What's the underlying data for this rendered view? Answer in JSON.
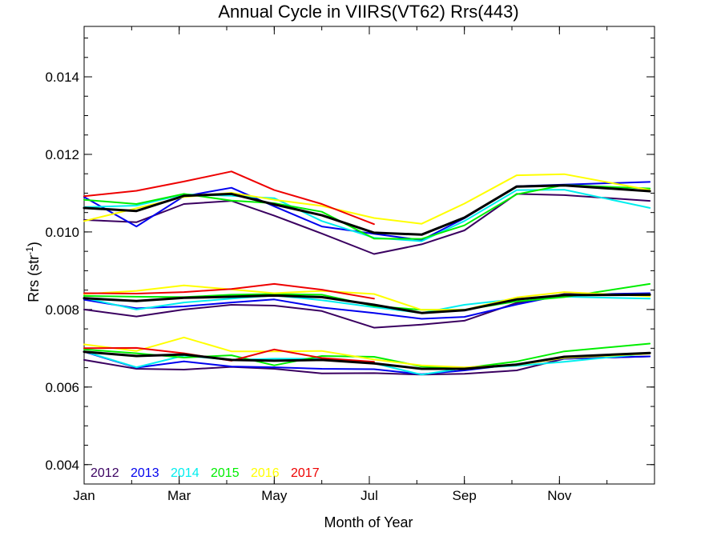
{
  "chart_data": {
    "type": "line",
    "title": "Annual Cycle in VIIRS(VT62) Rrs(443)",
    "xlabel": "Month of Year",
    "ylabel": "Rrs (str",
    "ylabel_exponent": "-1",
    "ylabel_suffix": ")",
    "xlim": [
      1,
      13
    ],
    "ylim": [
      0.0035,
      0.0153
    ],
    "xticks": [
      {
        "value": 1,
        "label": "Jan"
      },
      {
        "value": 3,
        "label": "Mar"
      },
      {
        "value": 5,
        "label": "May"
      },
      {
        "value": 7,
        "label": "Jul"
      },
      {
        "value": 9,
        "label": "Sep"
      },
      {
        "value": 11,
        "label": "Nov"
      }
    ],
    "yticks": [
      {
        "value": 0.004,
        "label": "0.004"
      },
      {
        "value": 0.006,
        "label": "0.006"
      },
      {
        "value": 0.008,
        "label": "0.008"
      },
      {
        "value": 0.01,
        "label": "0.010"
      },
      {
        "value": 0.012,
        "label": "0.012"
      },
      {
        "value": 0.014,
        "label": "0.014"
      }
    ],
    "x": [
      1.0,
      2.1,
      3.1,
      4.1,
      5.0,
      6.0,
      7.1,
      8.1,
      9.0,
      10.1,
      11.1,
      12.9
    ],
    "legend_placement": "bottom-left",
    "series": [
      {
        "name": "2012",
        "color": "#3a0060",
        "groups": [
          [
            0.01031,
            0.01025,
            0.01072,
            0.0108,
            0.01042,
            0.00996,
            0.00943,
            0.00968,
            0.01004,
            0.01098,
            0.01095,
            0.0108
          ],
          [
            0.008,
            0.00782,
            0.008,
            0.00812,
            0.0081,
            0.00796,
            0.00753,
            0.00761,
            0.00771,
            0.00817,
            0.0084,
            0.00839
          ],
          [
            0.0067,
            0.00647,
            0.00645,
            0.00652,
            0.00647,
            0.00635,
            0.00636,
            0.00632,
            0.00634,
            0.00643,
            0.00673,
            0.00679
          ]
        ]
      },
      {
        "name": "2013",
        "color": "#0000ee",
        "groups": [
          [
            0.0109,
            0.01014,
            0.01092,
            0.01114,
            0.01066,
            0.01014,
            0.00995,
            0.00979,
            0.01035,
            0.01118,
            0.01122,
            0.01129
          ],
          [
            0.00825,
            0.00803,
            0.00808,
            0.00818,
            0.00826,
            0.00805,
            0.00791,
            0.00776,
            0.00781,
            0.00813,
            0.00838,
            0.00842
          ],
          [
            0.00691,
            0.0065,
            0.00666,
            0.00653,
            0.00651,
            0.00647,
            0.00646,
            0.00633,
            0.00643,
            0.00659,
            0.00673,
            0.00679
          ]
        ]
      },
      {
        "name": "2014",
        "color": "#00eeee",
        "groups": [
          [
            0.01064,
            0.01068,
            0.01097,
            0.01093,
            0.01087,
            0.01028,
            0.00985,
            0.00976,
            0.01028,
            0.01108,
            0.01109,
            0.01062
          ],
          [
            0.0083,
            0.008,
            0.00818,
            0.00828,
            0.00836,
            0.00824,
            0.00806,
            0.00791,
            0.00812,
            0.00827,
            0.00833,
            0.00828
          ],
          [
            0.00692,
            0.00651,
            0.00681,
            0.0067,
            0.00673,
            0.00673,
            0.00661,
            0.00632,
            0.00649,
            0.00655,
            0.00665,
            0.00687
          ]
        ]
      },
      {
        "name": "2015",
        "color": "#00ee00",
        "groups": [
          [
            0.01083,
            0.01072,
            0.01098,
            0.01081,
            0.01074,
            0.01052,
            0.00983,
            0.00982,
            0.01017,
            0.01097,
            0.01121,
            0.01112
          ],
          [
            0.00835,
            0.00833,
            0.00832,
            0.00838,
            0.0084,
            0.00838,
            0.00809,
            0.00799,
            0.00799,
            0.00821,
            0.00832,
            0.00866
          ],
          [
            0.00697,
            0.00687,
            0.00676,
            0.00682,
            0.00656,
            0.0068,
            0.00678,
            0.00653,
            0.00649,
            0.00666,
            0.00692,
            0.00712
          ]
        ]
      },
      {
        "name": "2016",
        "color": "#ffff00",
        "groups": [
          [
            0.01028,
            0.01061,
            0.0109,
            0.01101,
            0.01083,
            0.01067,
            0.01036,
            0.01021,
            0.01073,
            0.01146,
            0.01149,
            0.01108
          ],
          [
            0.0084,
            0.00848,
            0.00862,
            0.00852,
            0.00842,
            0.00848,
            0.0084,
            0.00799,
            0.00799,
            0.00831,
            0.00845,
            0.00834
          ],
          [
            0.0071,
            0.00693,
            0.00728,
            0.00692,
            0.00692,
            0.00693,
            0.00671,
            0.00656,
            0.00651,
            0.00657,
            0.00675,
            0.00686
          ]
        ]
      },
      {
        "name": "2017",
        "color": "#ee0000",
        "groups": [
          [
            0.01092,
            0.01106,
            0.0113,
            0.01156,
            0.01108,
            0.01072,
            0.0102
          ],
          [
            0.00842,
            0.00841,
            0.00845,
            0.00853,
            0.00866,
            0.00851,
            0.00828
          ],
          [
            0.007,
            0.00701,
            0.00687,
            0.00668,
            0.00697,
            0.00675,
            0.00665
          ]
        ]
      },
      {
        "name": "",
        "color": "#000000",
        "groups": [
          [
            0.01062,
            0.01054,
            0.01093,
            0.01098,
            0.01071,
            0.01043,
            0.00998,
            0.00993,
            0.01037,
            0.01117,
            0.0112,
            0.01105
          ],
          [
            0.00829,
            0.00822,
            0.0083,
            0.00833,
            0.00836,
            0.00832,
            0.00812,
            0.00791,
            0.00798,
            0.00826,
            0.00837,
            0.00838
          ],
          [
            0.00691,
            0.0068,
            0.00684,
            0.0067,
            0.00668,
            0.0067,
            0.00661,
            0.00647,
            0.00647,
            0.00658,
            0.00678,
            0.00688
          ]
        ]
      }
    ]
  }
}
